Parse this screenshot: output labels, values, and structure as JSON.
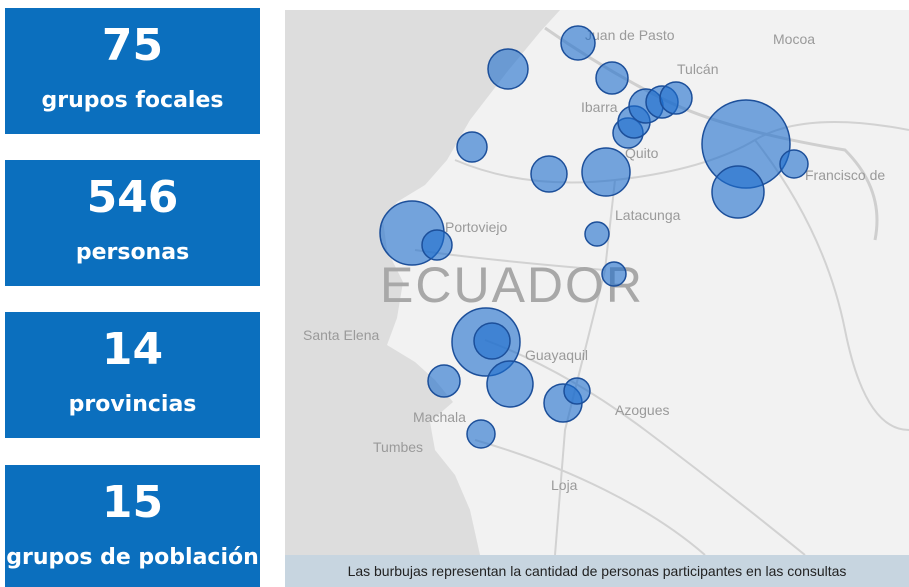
{
  "stats": [
    {
      "value": "75",
      "label": "grupos focales"
    },
    {
      "value": "546",
      "label": "personas"
    },
    {
      "value": "14",
      "label": "provincias"
    },
    {
      "value": "15",
      "label": "grupos de población"
    }
  ],
  "map": {
    "country": "ECUADOR",
    "places": [
      "Juan de Pasto",
      "Mocoa",
      "Tulcán",
      "Ibarra",
      "Quito",
      "Francisco de",
      "Portoviejo",
      "Latacunga",
      "Santa Elena",
      "Guayaquil",
      "Machala",
      "Azogues",
      "Tumbes",
      "Loja"
    ],
    "caption": "Las burbujas representan la cantidad de personas participantes en las consultas"
  }
}
